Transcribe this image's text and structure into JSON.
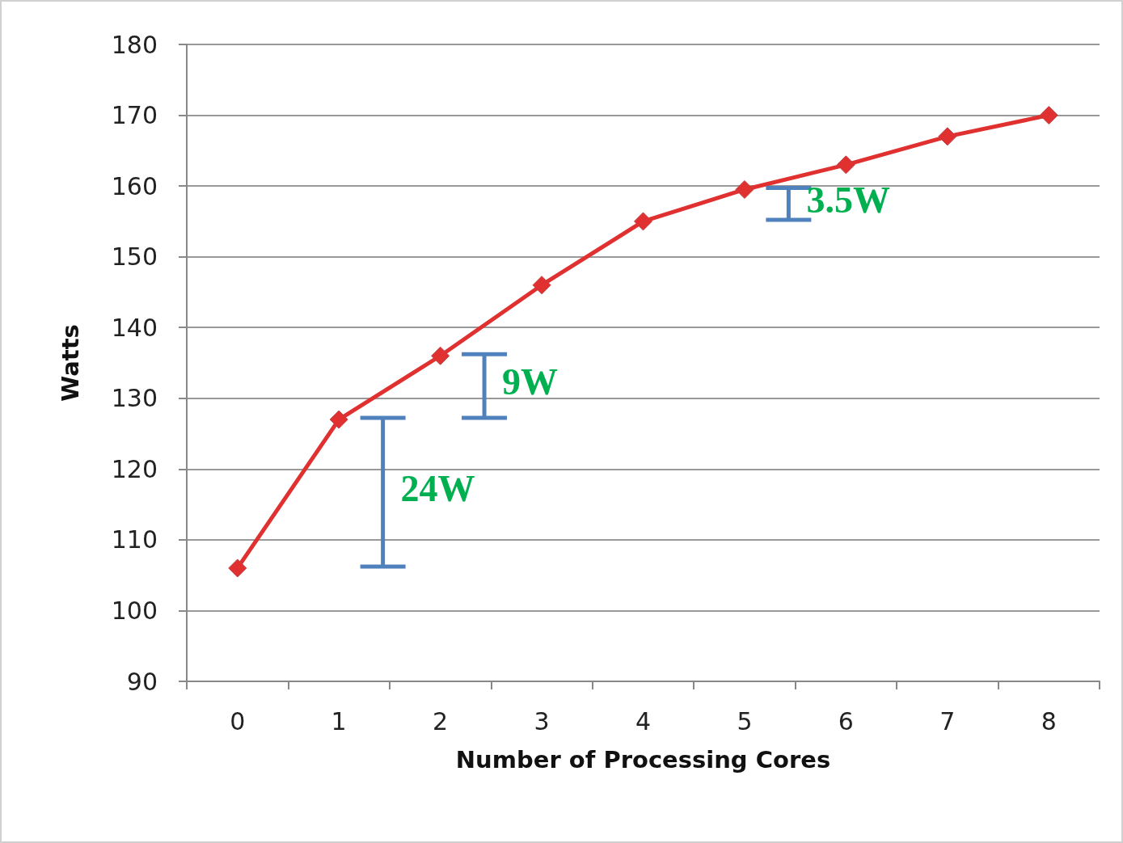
{
  "chart_data": {
    "type": "line",
    "xlabel": "Number of Processing Cores",
    "ylabel": "Watts",
    "categories": [
      "0",
      "1",
      "2",
      "3",
      "4",
      "5",
      "6",
      "7",
      "8"
    ],
    "series": [
      {
        "color": "#e03030",
        "values": [
          106,
          127,
          136,
          146,
          155,
          159.5,
          163,
          167,
          170
        ]
      }
    ],
    "ylim": [
      90,
      180
    ],
    "yticks": [
      90,
      100,
      110,
      120,
      130,
      140,
      150,
      160,
      170,
      180
    ],
    "grid": "y",
    "marker": "diamond",
    "line_style": "solid",
    "annotations": [
      "24W",
      "9W",
      "3.5W"
    ]
  }
}
